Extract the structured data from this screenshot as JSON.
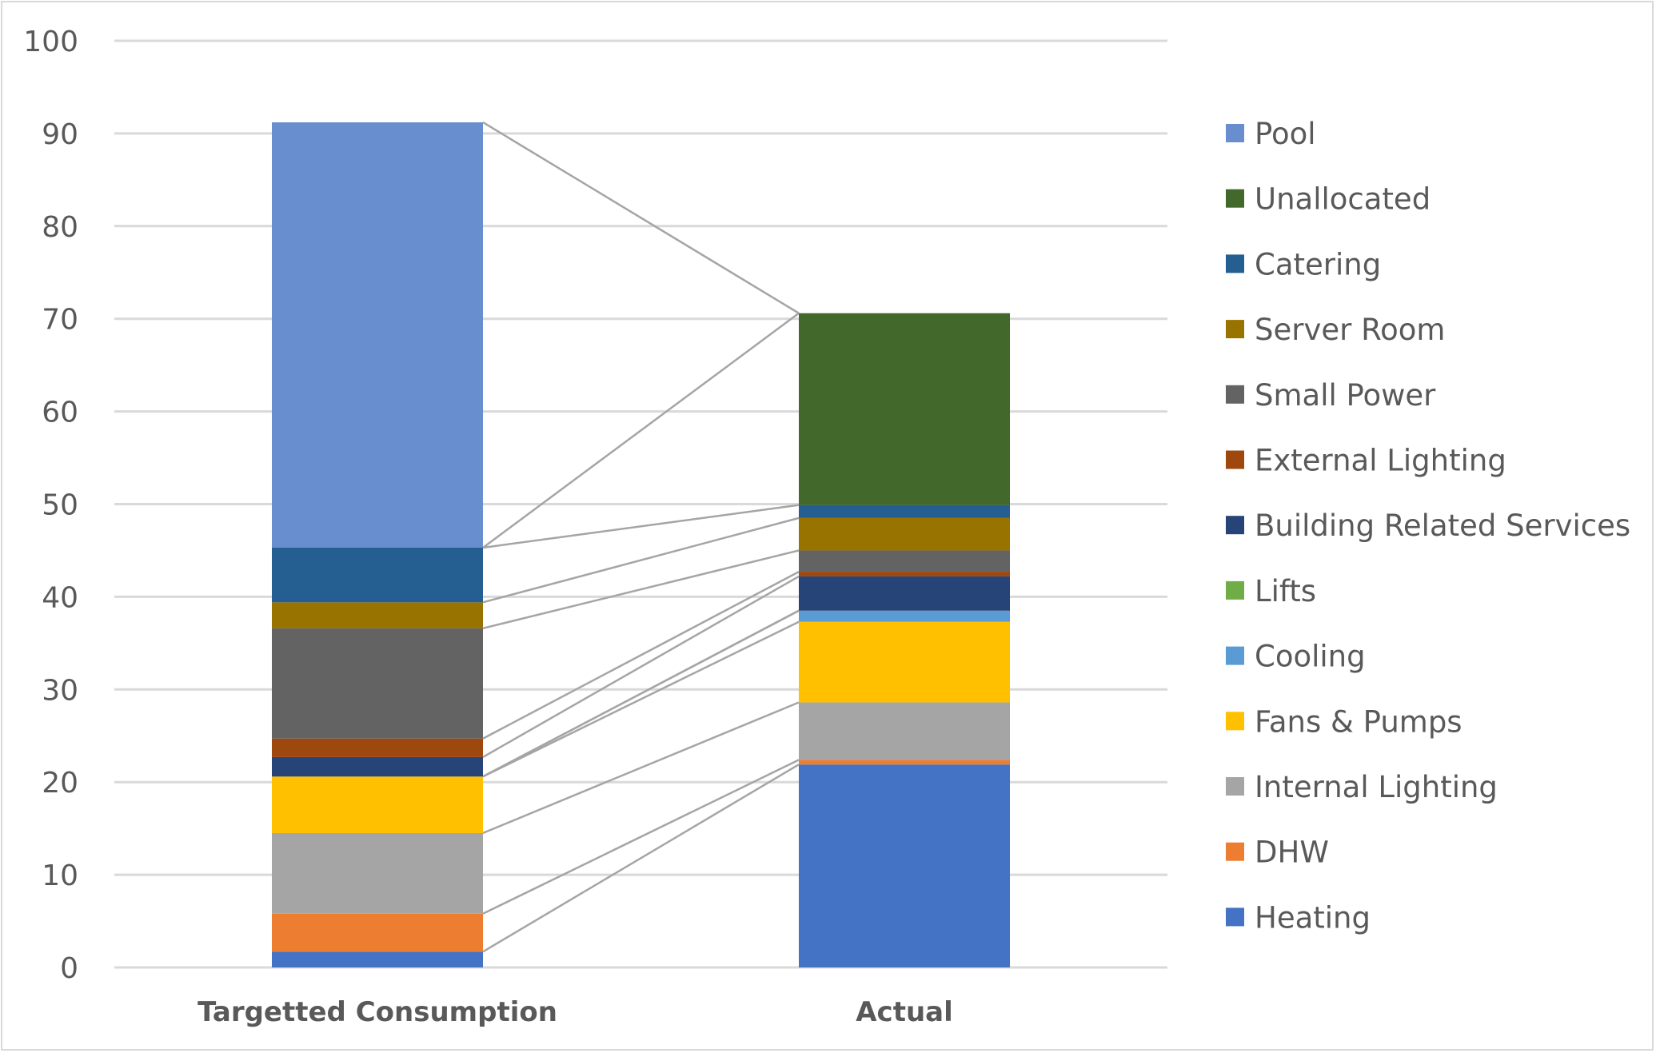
{
  "chart_data": {
    "type": "bar",
    "stacked": true,
    "title": "",
    "xlabel": "",
    "ylabel": "",
    "ylim": [
      0,
      100
    ],
    "yticks": [
      0,
      10,
      20,
      30,
      40,
      50,
      60,
      70,
      80,
      90,
      100
    ],
    "grid": true,
    "series_lines": true,
    "legend_position": "right",
    "categories": [
      "Targetted Consumption",
      "Actual"
    ],
    "series": [
      {
        "name": "Heating",
        "color": "#4472C4",
        "values": [
          1.7,
          21.9
        ]
      },
      {
        "name": "DHW",
        "color": "#ED7D31",
        "values": [
          4.1,
          0.5
        ]
      },
      {
        "name": "Internal Lighting",
        "color": "#A5A5A5",
        "values": [
          8.7,
          6.2
        ]
      },
      {
        "name": "Fans & Pumps",
        "color": "#FFC000",
        "values": [
          6.1,
          8.7
        ]
      },
      {
        "name": "Cooling",
        "color": "#5B9BD5",
        "values": [
          0,
          1.2
        ]
      },
      {
        "name": "Lifts",
        "color": "#70AD47",
        "values": [
          0,
          0
        ]
      },
      {
        "name": "Building Related Services",
        "color": "#264478",
        "values": [
          2.1,
          3.7
        ]
      },
      {
        "name": "External Lighting",
        "color": "#9E480E",
        "values": [
          2.0,
          0.5
        ]
      },
      {
        "name": "Small Power",
        "color": "#636363",
        "values": [
          11.9,
          2.3
        ]
      },
      {
        "name": "Server Room",
        "color": "#997300",
        "values": [
          2.8,
          3.5
        ]
      },
      {
        "name": "Catering",
        "color": "#255E91",
        "values": [
          5.9,
          1.4
        ]
      },
      {
        "name": "Unallocated",
        "color": "#43682B",
        "values": [
          0,
          20.7
        ]
      },
      {
        "name": "Pool",
        "color": "#698ED0",
        "values": [
          45.9,
          0
        ]
      }
    ],
    "colors": {
      "gridline": "#d9d9d9",
      "series_line": "#a5a5a5",
      "text": "#595959"
    }
  }
}
